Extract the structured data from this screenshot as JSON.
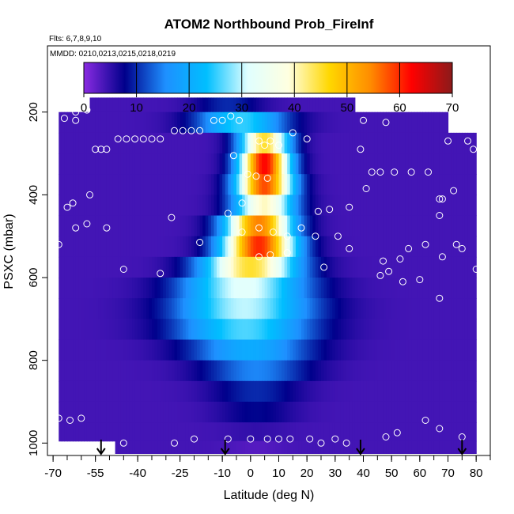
{
  "chart_data": {
    "type": "heatmap",
    "title": "ATOM2 Northbound Prob_FireInf",
    "flights_note": "Flts: 6,7,8,9,10",
    "dates_note": "MMDD: 0210,0213,0215,0218,0219",
    "xlabel": "Latitude (deg N)",
    "ylabel": "PSXC (mbar)",
    "xlim": [
      -72,
      85
    ],
    "ylim": [
      1030,
      40
    ],
    "y_reversed": true,
    "x_ticks": [
      -70,
      -55,
      -40,
      -25,
      -10,
      0,
      10,
      20,
      30,
      40,
      50,
      60,
      70,
      80
    ],
    "y_ticks": [
      200,
      400,
      600,
      800,
      1000
    ],
    "colorbar": {
      "ticks": [
        0,
        10,
        20,
        30,
        40,
        50,
        60,
        70
      ],
      "range": [
        0,
        70
      ],
      "colors": [
        "#8a2be2",
        "#00008b",
        "#1e90ff",
        "#00bfff",
        "#e0ffff",
        "#ffffe0",
        "#ffd700",
        "#ff8c00",
        "#ff0000",
        "#8b1a1a"
      ]
    },
    "pressure_levels": [
      175,
      225,
      275,
      325,
      375,
      425,
      475,
      525,
      575,
      625,
      675,
      725,
      775,
      825,
      875,
      925,
      975,
      1015
    ],
    "latitude_extent_by_level": [
      [
        -57,
        37
      ],
      [
        -68,
        70
      ],
      [
        -68,
        80
      ],
      [
        -68,
        80
      ],
      [
        -68,
        80
      ],
      [
        -68,
        80
      ],
      [
        -68,
        80
      ],
      [
        -68,
        80
      ],
      [
        -68,
        80
      ],
      [
        -68,
        80
      ],
      [
        -68,
        80
      ],
      [
        -68,
        80
      ],
      [
        -68,
        80
      ],
      [
        -68,
        80
      ],
      [
        -68,
        80
      ],
      [
        -68,
        80
      ],
      [
        -68,
        80
      ],
      [
        -48,
        80
      ]
    ],
    "plume_center_latitude_by_level": [
      -8,
      -3,
      5,
      5,
      5,
      5,
      3,
      3,
      0,
      -2,
      -2,
      -2,
      0,
      2,
      2,
      2,
      2,
      2
    ],
    "plume_peak_value_by_level": [
      10,
      25,
      45,
      62,
      58,
      40,
      55,
      60,
      45,
      32,
      30,
      26,
      20,
      15,
      10,
      8,
      5,
      3
    ],
    "plume_halfwidth_deg_by_level": [
      12,
      16,
      9,
      9,
      10,
      11,
      12,
      13,
      17,
      22,
      24,
      24,
      22,
      19,
      16,
      14,
      12,
      10
    ],
    "background_value": 4,
    "sample_points": [
      [
        -68,
        940
      ],
      [
        -64,
        945
      ],
      [
        -60,
        940
      ],
      [
        -45,
        1000
      ],
      [
        -27,
        1000
      ],
      [
        -20,
        990
      ],
      [
        -8,
        990
      ],
      [
        0,
        990
      ],
      [
        6,
        990
      ],
      [
        10,
        990
      ],
      [
        14,
        990
      ],
      [
        21,
        990
      ],
      [
        25,
        1000
      ],
      [
        30,
        990
      ],
      [
        34,
        1000
      ],
      [
        48,
        985
      ],
      [
        52,
        975
      ],
      [
        62,
        945
      ],
      [
        67,
        965
      ],
      [
        75,
        985
      ],
      [
        -62,
        200
      ],
      [
        -58,
        195
      ],
      [
        -66,
        215
      ],
      [
        -62,
        220
      ],
      [
        -55,
        290
      ],
      [
        -53,
        290
      ],
      [
        -51,
        290
      ],
      [
        -47,
        265
      ],
      [
        -44,
        265
      ],
      [
        -41,
        265
      ],
      [
        -38,
        265
      ],
      [
        -35,
        265
      ],
      [
        -32,
        265
      ],
      [
        -27,
        245
      ],
      [
        -24,
        245
      ],
      [
        -21,
        245
      ],
      [
        -18,
        245
      ],
      [
        -13,
        220
      ],
      [
        -10,
        220
      ],
      [
        -7,
        210
      ],
      [
        -4,
        220
      ],
      [
        5,
        280
      ],
      [
        10,
        280
      ],
      [
        15,
        250
      ],
      [
        20,
        265
      ],
      [
        -6,
        305
      ],
      [
        -1,
        350
      ],
      [
        2,
        355
      ],
      [
        6,
        360
      ],
      [
        -3,
        420
      ],
      [
        -8,
        445
      ],
      [
        -3,
        490
      ],
      [
        3,
        480
      ],
      [
        8,
        490
      ],
      [
        13,
        500
      ],
      [
        18,
        480
      ],
      [
        -18,
        515
      ],
      [
        -28,
        455
      ],
      [
        -32,
        590
      ],
      [
        -45,
        580
      ],
      [
        -51,
        480
      ],
      [
        -57,
        400
      ],
      [
        -63,
        420
      ],
      [
        -65,
        430
      ],
      [
        -58,
        470
      ],
      [
        -62,
        480
      ],
      [
        -68,
        520
      ],
      [
        3,
        550
      ],
      [
        7,
        545
      ],
      [
        13,
        540
      ],
      [
        23,
        500
      ],
      [
        24,
        440
      ],
      [
        28,
        435
      ],
      [
        35,
        430
      ],
      [
        39,
        290
      ],
      [
        41,
        385
      ],
      [
        40,
        220
      ],
      [
        48,
        225
      ],
      [
        47,
        560
      ],
      [
        43,
        345
      ],
      [
        46,
        345
      ],
      [
        51,
        345
      ],
      [
        57,
        345
      ],
      [
        63,
        345
      ],
      [
        67,
        410
      ],
      [
        68,
        410
      ],
      [
        67,
        450
      ],
      [
        72,
        390
      ],
      [
        73,
        520
      ],
      [
        75,
        530
      ],
      [
        77,
        270
      ],
      [
        79,
        290
      ],
      [
        70,
        270
      ],
      [
        62,
        520
      ],
      [
        56,
        530
      ],
      [
        53,
        555
      ],
      [
        49,
        585
      ],
      [
        46,
        595
      ],
      [
        54,
        610
      ],
      [
        60,
        605
      ],
      [
        67,
        650
      ],
      [
        68,
        550
      ],
      [
        80,
        580
      ],
      [
        35,
        530
      ],
      [
        31,
        500
      ],
      [
        26,
        575
      ],
      [
        3,
        270
      ],
      [
        7,
        270
      ]
    ],
    "arrow_markers_latitude": [
      -53,
      -9,
      39,
      75
    ]
  }
}
